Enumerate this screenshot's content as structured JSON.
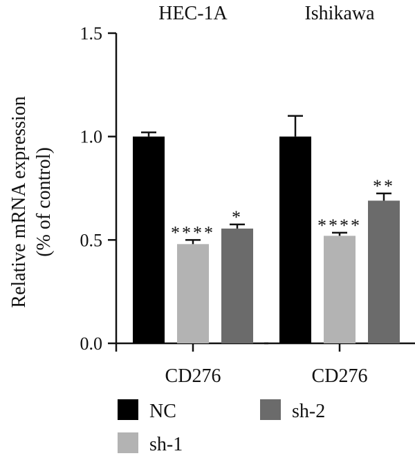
{
  "chart_data": {
    "type": "bar",
    "ylabel": [
      "Relative mRNA expression",
      "(% of control)"
    ],
    "ylim": [
      0,
      1.5
    ],
    "yticks": [
      "0.0",
      "0.5",
      "1.0",
      "1.5"
    ],
    "groups": [
      {
        "title": "HEC-1A",
        "category": "CD276",
        "bars": [
          {
            "series": "NC",
            "value": 1.0,
            "error": 0.02,
            "sig": ""
          },
          {
            "series": "sh-1",
            "value": 0.48,
            "error": 0.02,
            "sig": "****"
          },
          {
            "series": "sh-2",
            "value": 0.555,
            "error": 0.02,
            "sig": "*"
          }
        ]
      },
      {
        "title": "Ishikawa",
        "category": "CD276",
        "bars": [
          {
            "series": "NC",
            "value": 1.0,
            "error": 0.1,
            "sig": ""
          },
          {
            "series": "sh-1",
            "value": 0.52,
            "error": 0.015,
            "sig": "****"
          },
          {
            "series": "sh-2",
            "value": 0.69,
            "error": 0.035,
            "sig": "**"
          }
        ]
      }
    ],
    "series": [
      {
        "name": "NC",
        "color": "#000000"
      },
      {
        "name": "sh-1",
        "color": "#b3b3b3"
      },
      {
        "name": "sh-2",
        "color": "#6b6b6b"
      }
    ],
    "legend_position": "bottom"
  }
}
